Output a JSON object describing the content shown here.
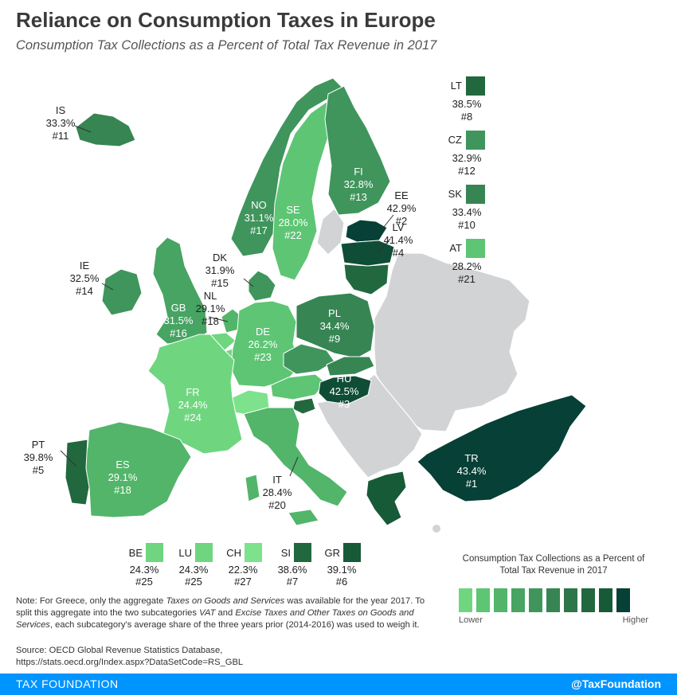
{
  "header": {
    "title": "Reliance on Consumption Taxes in Europe",
    "subtitle": "Consumption Tax Collections as a Percent of Total Tax Revenue in 2017"
  },
  "colors": {
    "no_data": "#d2d3d5",
    "scale": [
      "#6fd67f",
      "#5dc574",
      "#52b56a",
      "#47a463",
      "#3f955c",
      "#368553",
      "#2d7649",
      "#22683f",
      "#175a38",
      "#064036"
    ]
  },
  "countries": {
    "IS": {
      "code": "IS",
      "value": "33.3%",
      "rank": "#11"
    },
    "NO": {
      "code": "NO",
      "value": "31.1%",
      "rank": "#17"
    },
    "SE": {
      "code": "SE",
      "value": "28.0%",
      "rank": "#22"
    },
    "FI": {
      "code": "FI",
      "value": "32.8%",
      "rank": "#13"
    },
    "EE": {
      "code": "EE",
      "value": "42.9%",
      "rank": "#2"
    },
    "LV": {
      "code": "LV",
      "value": "41.4%",
      "rank": "#4"
    },
    "DK": {
      "code": "DK",
      "value": "31.9%",
      "rank": "#15"
    },
    "IE": {
      "code": "IE",
      "value": "32.5%",
      "rank": "#14"
    },
    "GB": {
      "code": "GB",
      "value": "31.5%",
      "rank": "#16"
    },
    "NL": {
      "code": "NL",
      "value": "29.1%",
      "rank": "#18"
    },
    "DE": {
      "code": "DE",
      "value": "26.2%",
      "rank": "#23"
    },
    "PL": {
      "code": "PL",
      "value": "34.4%",
      "rank": "#9"
    },
    "HU": {
      "code": "HU",
      "value": "42.5%",
      "rank": "#3"
    },
    "FR": {
      "code": "FR",
      "value": "24.4%",
      "rank": "#24"
    },
    "PT": {
      "code": "PT",
      "value": "39.8%",
      "rank": "#5"
    },
    "ES": {
      "code": "ES",
      "value": "29.1%",
      "rank": "#18"
    },
    "IT": {
      "code": "IT",
      "value": "28.4%",
      "rank": "#20"
    },
    "TR": {
      "code": "TR",
      "value": "43.4%",
      "rank": "#1"
    }
  },
  "legend_right": [
    {
      "code": "LT",
      "value": "38.5%",
      "rank": "#8",
      "color": "#22683f"
    },
    {
      "code": "CZ",
      "value": "32.9%",
      "rank": "#12",
      "color": "#3f955c"
    },
    {
      "code": "SK",
      "value": "33.4%",
      "rank": "#10",
      "color": "#368553"
    },
    {
      "code": "AT",
      "value": "28.2%",
      "rank": "#21",
      "color": "#5dc574"
    }
  ],
  "legend_bottom": [
    {
      "code": "BE",
      "value": "24.3%",
      "rank": "#25",
      "color": "#6fd67f"
    },
    {
      "code": "LU",
      "value": "24.3%",
      "rank": "#25",
      "color": "#6fd67f"
    },
    {
      "code": "CH",
      "value": "22.3%",
      "rank": "#27",
      "color": "#7ee18c"
    },
    {
      "code": "SI",
      "value": "38.6%",
      "rank": "#7",
      "color": "#22683f"
    },
    {
      "code": "GR",
      "value": "39.1%",
      "rank": "#6",
      "color": "#175a38"
    }
  ],
  "scale_legend": {
    "title": "Consumption Tax Collections as a Percent of Total Tax Revenue in 2017",
    "low": "Lower",
    "high": "Higher"
  },
  "note": {
    "prefix": "Note: For Greece, only the aggregate ",
    "em1": "Taxes on Goods and Services",
    "mid1": " was available for the year 2017. To split this aggregate into the two subcategories ",
    "em2": "VAT",
    "mid2": " and ",
    "em3": "Excise Taxes and Other Taxes on Goods and Services",
    "suffix": ", each subcategory’s average share of the three years prior (2014-2016) was used to weigh it."
  },
  "source": {
    "line1": "Source: OECD Global Revenue Statistics Database,",
    "line2": "https://stats.oecd.org/Index.aspx?DataSetCode=RS_GBL"
  },
  "footer": {
    "brand": "TAX FOUNDATION",
    "handle": "@TaxFoundation"
  }
}
